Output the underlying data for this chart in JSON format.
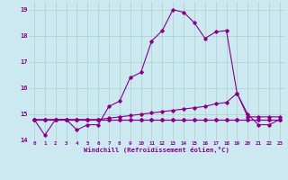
{
  "xlabel": "Windchill (Refroidissement éolien,°C)",
  "background_color": "#cce8f0",
  "grid_color": "#b0d4cc",
  "line_color": "#880088",
  "xlim": [
    -0.5,
    23.5
  ],
  "ylim": [
    14.0,
    19.3
  ],
  "yticks": [
    14,
    15,
    16,
    17,
    18,
    19
  ],
  "xticks": [
    0,
    1,
    2,
    3,
    4,
    5,
    6,
    7,
    8,
    9,
    10,
    11,
    12,
    13,
    14,
    15,
    16,
    17,
    18,
    19,
    20,
    21,
    22,
    23
  ],
  "series": [
    [
      14.8,
      14.2,
      14.8,
      14.8,
      14.4,
      14.6,
      14.6,
      15.3,
      15.5,
      16.4,
      16.6,
      17.8,
      18.2,
      19.0,
      18.9,
      18.5,
      17.9,
      18.15,
      18.2,
      15.8,
      15.0,
      14.6,
      14.6,
      14.8
    ],
    [
      14.8,
      14.8,
      14.8,
      14.8,
      14.8,
      14.8,
      14.8,
      14.85,
      14.9,
      14.95,
      15.0,
      15.05,
      15.1,
      15.15,
      15.2,
      15.25,
      15.3,
      15.4,
      15.45,
      15.8,
      14.9,
      14.9,
      14.9,
      14.9
    ],
    [
      14.8,
      14.8,
      14.8,
      14.8,
      14.8,
      14.8,
      14.8,
      14.8,
      14.8,
      14.8,
      14.8,
      14.8,
      14.8,
      14.8,
      14.8,
      14.8,
      14.8,
      14.8,
      14.8,
      14.8,
      14.8,
      14.8,
      14.8,
      14.8
    ],
    [
      14.8,
      14.8,
      14.8,
      14.8,
      14.8,
      14.8,
      14.8,
      14.8,
      14.8,
      14.8,
      14.8,
      14.8,
      14.8,
      14.8,
      14.8,
      14.8,
      14.8,
      14.8,
      14.8,
      14.8,
      14.8,
      14.8,
      14.8,
      14.8
    ]
  ]
}
